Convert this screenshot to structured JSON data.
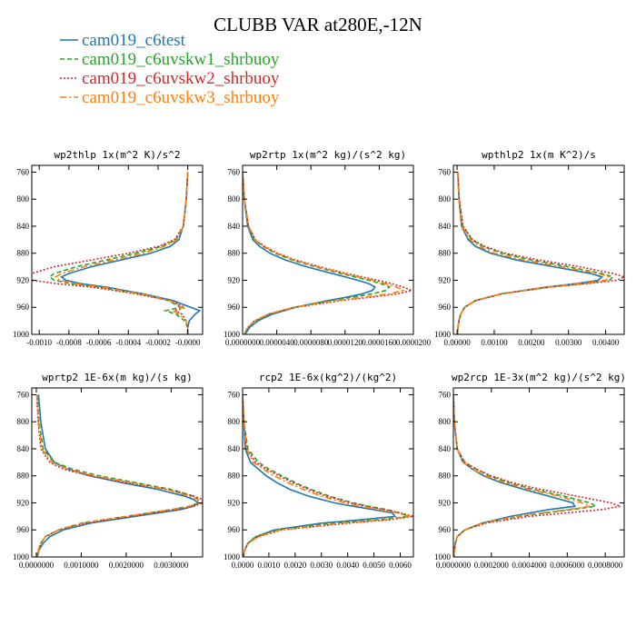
{
  "figure": {
    "title": "CLUBB VAR at280E,-12N"
  },
  "legend": [
    {
      "name": "cam019_c6test",
      "color": "#1f77b4",
      "dash": "solid"
    },
    {
      "name": "cam019_c6uvskw1_shrbuoy",
      "color": "#2ca02c",
      "dash": "dashed"
    },
    {
      "name": "cam019_c6uvskw2_shrbuoy",
      "color": "#d62728",
      "dash": "dotted"
    },
    {
      "name": "cam019_c6uvskw3_shrbuoy",
      "color": "#ff7f0e",
      "dash": "dashdot"
    }
  ],
  "chart_data": [
    {
      "type": "line",
      "title": "wp2thlp  1x(m^2 K)/s^2",
      "xlim": [
        -0.00105,
        0.0001
      ],
      "ylim": [
        1000,
        750
      ],
      "xticks": [
        -0.001,
        -0.0008,
        -0.0006,
        -0.0004,
        -0.0002,
        0.0
      ],
      "xtick_labels": [
        "-0.0010",
        "-0.0008",
        "-0.0006",
        "-0.0004",
        "-0.0002",
        "-0.0000"
      ],
      "yticks": [
        760,
        800,
        840,
        880,
        920,
        960,
        1000
      ],
      "y": [
        760,
        800,
        840,
        860,
        870,
        880,
        890,
        900,
        910,
        915,
        920,
        925,
        930,
        940,
        950,
        960,
        965,
        970,
        980,
        990,
        1000
      ],
      "series": [
        {
          "values": [
            0,
            -1e-05,
            -3e-05,
            -6e-05,
            -0.00012,
            -0.00025,
            -0.00045,
            -0.00065,
            -0.0008,
            -0.00085,
            -0.00082,
            -0.00072,
            -0.00055,
            -0.0003,
            -0.0001,
            2e-05,
            8e-05,
            5e-05,
            1e-05,
            0.0,
            0.0
          ]
        },
        {
          "values": [
            0,
            -1e-05,
            -3e-05,
            -8e-05,
            -0.00018,
            -0.00035,
            -0.00055,
            -0.00075,
            -0.0009,
            -0.00093,
            -0.0009,
            -0.00078,
            -0.0006,
            -0.00033,
            -0.00013,
            -5e-05,
            -0.00015,
            -8e-05,
            -2e-05,
            0.0,
            0.0
          ]
        },
        {
          "values": [
            0,
            -1e-05,
            -3e-05,
            -9e-05,
            -0.0002,
            -0.0004,
            -0.00065,
            -0.0009,
            -0.00105,
            -0.00108,
            -0.00105,
            -0.00088,
            -0.00065,
            -0.00035,
            -0.00012,
            -2e-05,
            -8e-05,
            -4e-05,
            -1e-05,
            0.0,
            0.0
          ]
        },
        {
          "values": [
            0,
            -1e-05,
            -3e-05,
            -7e-05,
            -0.00016,
            -0.0003,
            -0.0005,
            -0.0007,
            -0.00085,
            -0.00089,
            -0.00086,
            -0.00075,
            -0.00058,
            -0.00032,
            -0.00012,
            -3e-05,
            -0.0001,
            -6e-05,
            -1e-05,
            0.0,
            0.0
          ]
        }
      ]
    },
    {
      "type": "line",
      "title": "wp2rtp  1x(m^2 kg)/(s^2 kg)",
      "xlim": [
        0,
        2e-05
      ],
      "ylim": [
        1000,
        750
      ],
      "xticks": [
        0,
        4e-06,
        8e-06,
        1.2e-05,
        1.6e-05,
        2e-05
      ],
      "xtick_labels": [
        "0.0000000",
        "0.0000040",
        "0.0000080",
        "0.0000120",
        "0.0000160",
        "0.0000200"
      ],
      "yticks": [
        760,
        800,
        840,
        880,
        920,
        960,
        1000
      ],
      "y": [
        760,
        800,
        840,
        860,
        870,
        880,
        890,
        900,
        910,
        920,
        925,
        930,
        935,
        940,
        945,
        950,
        960,
        970,
        980,
        990,
        1000
      ],
      "series": [
        {
          "values": [
            0,
            2e-07,
            6e-07,
            1.2e-06,
            2e-06,
            3.2e-06,
            5e-06,
            7.5e-06,
            1.05e-05,
            1.35e-05,
            1.48e-05,
            1.55e-05,
            1.52e-05,
            1.4e-05,
            1.22e-05,
            1e-05,
            6.2e-06,
            3.5e-06,
            1.8e-06,
            8e-07,
            3e-07
          ]
        },
        {
          "values": [
            0,
            2e-07,
            7e-07,
            1.4e-06,
            2.4e-06,
            3.8e-06,
            5.8e-06,
            8.5e-06,
            1.15e-05,
            1.48e-05,
            1.62e-05,
            1.72e-05,
            1.68e-05,
            1.52e-05,
            1.28e-05,
            1.02e-05,
            6e-06,
            3.2e-06,
            1.5e-06,
            6e-07,
            2e-07
          ]
        },
        {
          "values": [
            0,
            2e-07,
            7e-07,
            1.5e-06,
            2.6e-06,
            4.1e-06,
            6.2e-06,
            9e-06,
            1.22e-05,
            1.58e-05,
            1.75e-05,
            1.88e-05,
            1.98e-05,
            1.82e-05,
            1.5e-05,
            1.15e-05,
            6.2e-06,
            3.1e-06,
            1.4e-06,
            6e-07,
            2e-07
          ]
        },
        {
          "values": [
            0,
            2e-07,
            7e-07,
            1.4e-06,
            2.5e-06,
            4e-06,
            6e-06,
            8.8e-06,
            1.19e-05,
            1.53e-05,
            1.68e-05,
            1.8e-05,
            1.88e-05,
            1.72e-05,
            1.42e-05,
            1.1e-05,
            6e-06,
            3e-06,
            1.4e-06,
            6e-07,
            2e-07
          ]
        }
      ]
    },
    {
      "type": "line",
      "title": "wpthlp2  1x(m K^2)/s",
      "xlim": [
        -0.0001,
        0.0045
      ],
      "ylim": [
        1000,
        750
      ],
      "xticks": [
        0.0,
        0.001,
        0.002,
        0.003,
        0.004
      ],
      "xtick_labels": [
        "0.00000",
        "0.00100",
        "0.00200",
        "0.00300",
        "0.00400"
      ],
      "yticks": [
        760,
        800,
        840,
        880,
        920,
        960,
        1000
      ],
      "y": [
        760,
        800,
        840,
        860,
        870,
        880,
        890,
        900,
        910,
        915,
        920,
        925,
        930,
        940,
        950,
        960,
        970,
        980,
        990,
        1000
      ],
      "series": [
        {
          "values": [
            2e-05,
            5e-05,
            0.00012,
            0.0003,
            0.0005,
            0.0009,
            0.0016,
            0.0026,
            0.0036,
            0.0039,
            0.0038,
            0.0032,
            0.0024,
            0.0012,
            0.0005,
            0.0002,
            0.0001,
            5e-05,
            2e-05,
            1e-05
          ]
        },
        {
          "values": [
            2e-05,
            6e-05,
            0.00015,
            0.0004,
            0.0007,
            0.0012,
            0.002,
            0.003,
            0.0039,
            0.0042,
            0.0041,
            0.0034,
            0.0025,
            0.0012,
            0.0005,
            0.0002,
            0.0001,
            5e-05,
            2e-05,
            1e-05
          ]
        },
        {
          "values": [
            2e-05,
            6e-05,
            0.00016,
            0.00042,
            0.00075,
            0.0013,
            0.0022,
            0.0033,
            0.0042,
            0.0045,
            0.0043,
            0.0035,
            0.0025,
            0.0012,
            0.0005,
            0.0002,
            0.0001,
            5e-05,
            2e-05,
            1e-05
          ]
        },
        {
          "values": [
            2e-05,
            5e-05,
            0.00013,
            0.00035,
            0.0006,
            0.001,
            0.0018,
            0.0028,
            0.0038,
            0.0041,
            0.004,
            0.0033,
            0.0024,
            0.0012,
            0.0005,
            0.0002,
            0.0001,
            5e-05,
            2e-05,
            1e-05
          ]
        }
      ]
    },
    {
      "type": "line",
      "title": "wprtp2  1E-6x(m kg)/(s kg)",
      "xlim": [
        -0.0001,
        0.0037
      ],
      "ylim": [
        1000,
        750
      ],
      "xticks": [
        0.0,
        0.001,
        0.002,
        0.003
      ],
      "xtick_labels": [
        "0.0000000",
        "0.0010000",
        "0.0020000",
        "0.0030000"
      ],
      "yticks": [
        760,
        800,
        840,
        880,
        920,
        960,
        1000
      ],
      "y": [
        760,
        800,
        840,
        860,
        870,
        880,
        890,
        900,
        910,
        915,
        920,
        925,
        930,
        940,
        950,
        960,
        970,
        980,
        990,
        1000
      ],
      "series": [
        {
          "values": [
            5e-05,
            0.0001,
            0.0002,
            0.0004,
            0.0007,
            0.0012,
            0.0019,
            0.0027,
            0.0033,
            0.0035,
            0.0036,
            0.0035,
            0.0032,
            0.0022,
            0.0012,
            0.0006,
            0.0003,
            0.00015,
            6e-05,
            2e-05
          ]
        },
        {
          "values": [
            2e-05,
            6e-05,
            0.00015,
            0.0004,
            0.0008,
            0.0014,
            0.0022,
            0.003,
            0.0035,
            0.0036,
            0.0036,
            0.0034,
            0.003,
            0.002,
            0.001,
            0.0005,
            0.0002,
            0.0001,
            5e-05,
            2e-05
          ]
        },
        {
          "values": [
            1e-05,
            4e-05,
            0.0001,
            0.0003,
            0.0006,
            0.0012,
            0.002,
            0.0029,
            0.0035,
            0.0037,
            0.0037,
            0.0035,
            0.0031,
            0.0021,
            0.0011,
            0.0005,
            0.0002,
            0.0001,
            4e-05,
            2e-05
          ]
        },
        {
          "values": [
            2e-05,
            5e-05,
            0.00012,
            0.00035,
            0.0007,
            0.0013,
            0.0021,
            0.0029,
            0.0034,
            0.0036,
            0.0036,
            0.0034,
            0.003,
            0.002,
            0.001,
            0.0005,
            0.0002,
            0.0001,
            5e-05,
            2e-05
          ]
        }
      ]
    },
    {
      "type": "line",
      "title": "rcp2  1E-6x(kg^2)/(kg^2)",
      "xlim": [
        0,
        0.0065
      ],
      "ylim": [
        1000,
        750
      ],
      "xticks": [
        0.0,
        0.001,
        0.002,
        0.003,
        0.004,
        0.005,
        0.006
      ],
      "xtick_labels": [
        "0.0000",
        "0.0010",
        "0.0020",
        "0.0030",
        "0.0040",
        "0.0050",
        "0.0060"
      ],
      "yticks": [
        760,
        800,
        840,
        880,
        920,
        960,
        1000
      ],
      "y": [
        760,
        800,
        840,
        860,
        870,
        880,
        890,
        900,
        910,
        920,
        925,
        930,
        935,
        940,
        945,
        950,
        960,
        970,
        980,
        990,
        1000
      ],
      "series": [
        {
          "values": [
            0,
            5e-05,
            0.0001,
            0.0003,
            0.0006,
            0.0009,
            0.0013,
            0.0018,
            0.0025,
            0.0035,
            0.0042,
            0.005,
            0.0057,
            0.0058,
            0.0045,
            0.003,
            0.0012,
            0.0005,
            0.0002,
            8e-05,
            3e-05
          ]
        },
        {
          "values": [
            0,
            5e-05,
            0.0002,
            0.0006,
            0.001,
            0.0015,
            0.002,
            0.0026,
            0.0033,
            0.0042,
            0.0048,
            0.0055,
            0.006,
            0.0063,
            0.0052,
            0.0035,
            0.0013,
            0.0005,
            0.0002,
            8e-05,
            3e-05
          ]
        },
        {
          "values": [
            0,
            5e-05,
            0.00015,
            0.0005,
            0.0009,
            0.0014,
            0.0019,
            0.0025,
            0.0032,
            0.0041,
            0.0047,
            0.0054,
            0.006,
            0.0065,
            0.0056,
            0.004,
            0.0015,
            0.0006,
            0.0002,
            8e-05,
            3e-05
          ]
        },
        {
          "values": [
            0,
            5e-05,
            0.00015,
            0.0004,
            0.0008,
            0.0012,
            0.0017,
            0.0023,
            0.003,
            0.0039,
            0.0045,
            0.0052,
            0.0059,
            0.0064,
            0.0054,
            0.0038,
            0.0014,
            0.0006,
            0.0002,
            8e-05,
            3e-05
          ]
        }
      ]
    },
    {
      "type": "line",
      "title": "wp2rcp  1E-3x(m^2 kg)/(s^2 kg)",
      "xlim": [
        0,
        0.0009
      ],
      "ylim": [
        1000,
        750
      ],
      "xticks": [
        0.0,
        0.0002,
        0.0004,
        0.0006,
        0.0008
      ],
      "xtick_labels": [
        "0.0000000",
        "0.0002000",
        "0.0004000",
        "0.0006000",
        "0.0008000"
      ],
      "yticks": [
        760,
        800,
        840,
        880,
        920,
        960,
        1000
      ],
      "y": [
        760,
        800,
        840,
        860,
        870,
        880,
        890,
        900,
        910,
        920,
        925,
        930,
        940,
        950,
        960,
        970,
        980,
        990,
        1000
      ],
      "series": [
        {
          "values": [
            0,
            5e-06,
            2e-05,
            5e-05,
            0.0001,
            0.00016,
            0.00025,
            0.00037,
            0.0005,
            0.00063,
            0.00064,
            0.0005,
            0.0003,
            0.00015,
            6e-05,
            2e-05,
            1e-05,
            5e-06,
            2e-06
          ]
        },
        {
          "values": [
            0,
            5e-06,
            2e-05,
            6e-05,
            0.00012,
            0.00019,
            0.00029,
            0.00042,
            0.00058,
            0.00072,
            0.00075,
            0.00062,
            0.00035,
            0.00016,
            6e-05,
            2e-05,
            1e-05,
            5e-06,
            2e-06
          ]
        },
        {
          "values": [
            0,
            5e-06,
            2e-05,
            6e-05,
            0.00012,
            0.0002,
            0.00031,
            0.00046,
            0.00065,
            0.00083,
            0.00088,
            0.00078,
            0.0004,
            0.00017,
            6e-05,
            2e-05,
            1e-05,
            5e-06,
            2e-06
          ]
        },
        {
          "values": [
            0,
            5e-06,
            2e-05,
            5e-05,
            0.0001,
            0.00017,
            0.00027,
            0.0004,
            0.00055,
            0.00068,
            0.00072,
            0.0006,
            0.00033,
            0.00015,
            6e-05,
            2e-05,
            1e-05,
            5e-06,
            2e-06
          ]
        }
      ]
    }
  ]
}
